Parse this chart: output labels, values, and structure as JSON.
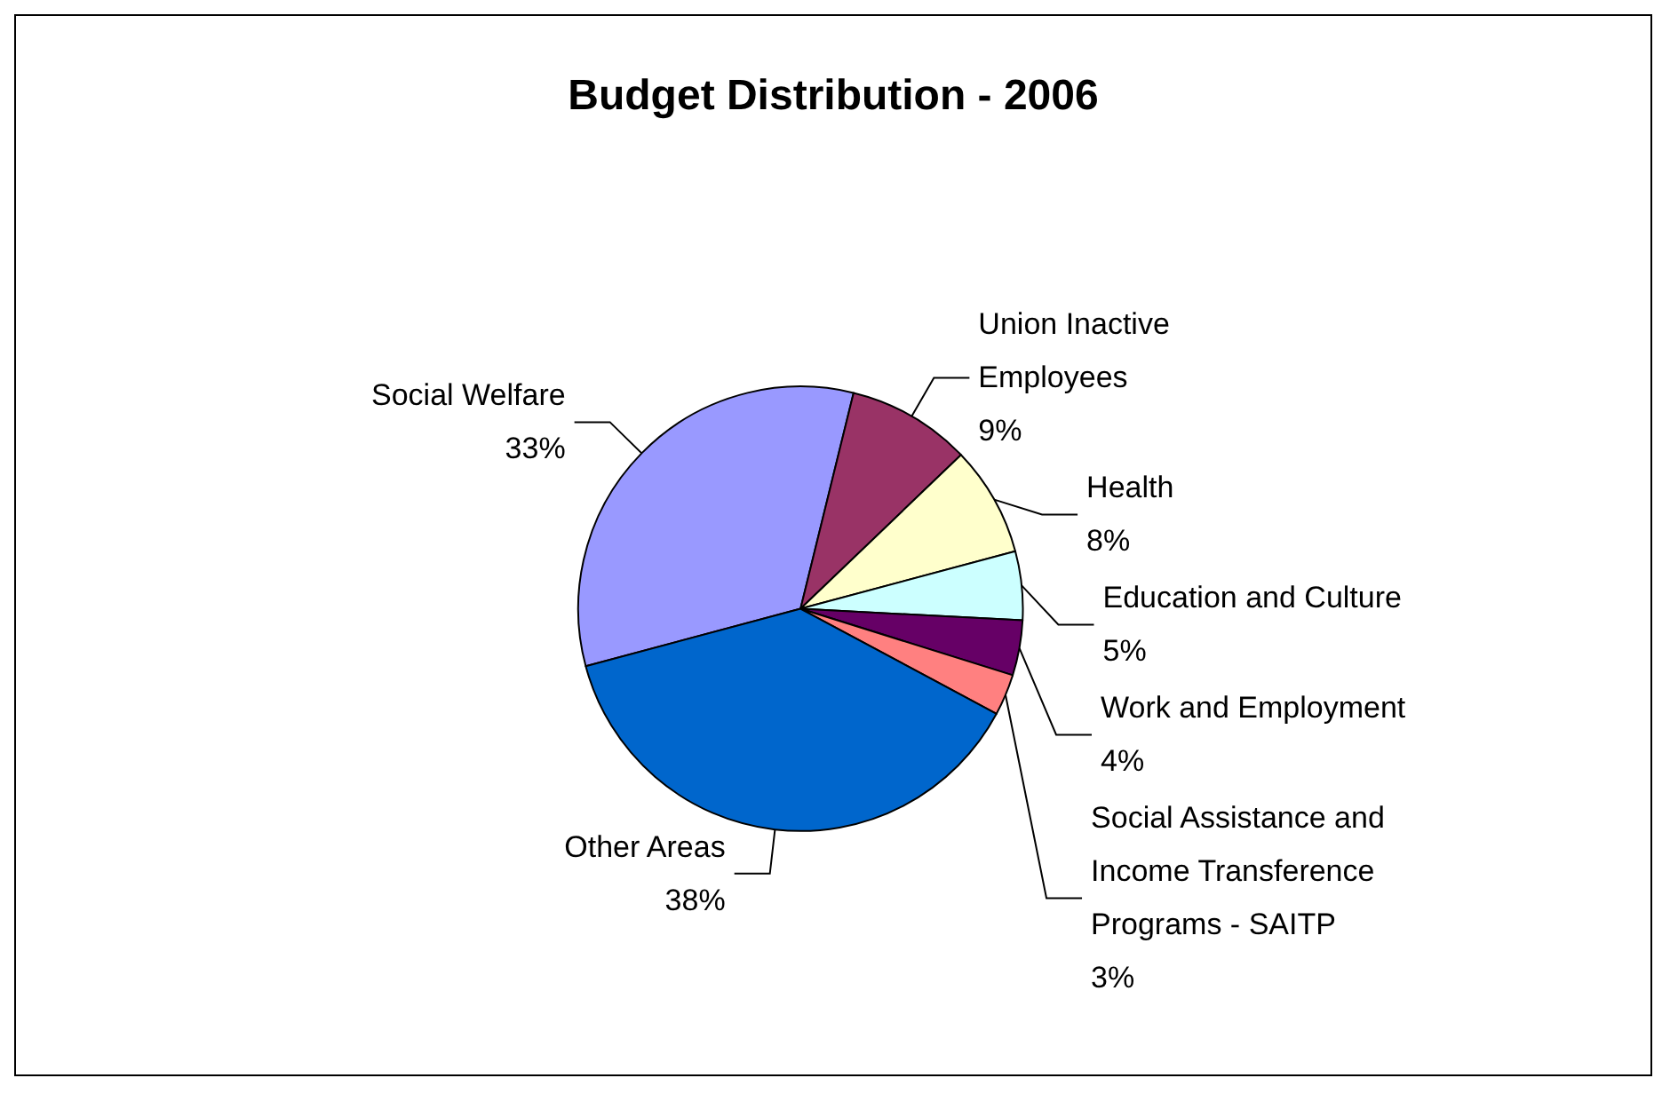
{
  "chart_data": {
    "type": "pie",
    "title": "Budget Distribution - 2006",
    "categories": [
      "Social Welfare",
      "Union Inactive Employees",
      "Health",
      "Education and Culture",
      "Work and Employment",
      "Social Assistance and Income Transference Programs - SAITP",
      "Other Areas"
    ],
    "values": [
      33,
      9,
      8,
      5,
      4,
      3,
      38
    ],
    "value_labels": [
      "33%",
      "9%",
      "8%",
      "5%",
      "4%",
      "3%",
      "38%"
    ],
    "colors": [
      "#9999ff",
      "#993366",
      "#ffffcc",
      "#ccffff",
      "#660066",
      "#ff8080",
      "#0066cc"
    ],
    "legend": false
  }
}
